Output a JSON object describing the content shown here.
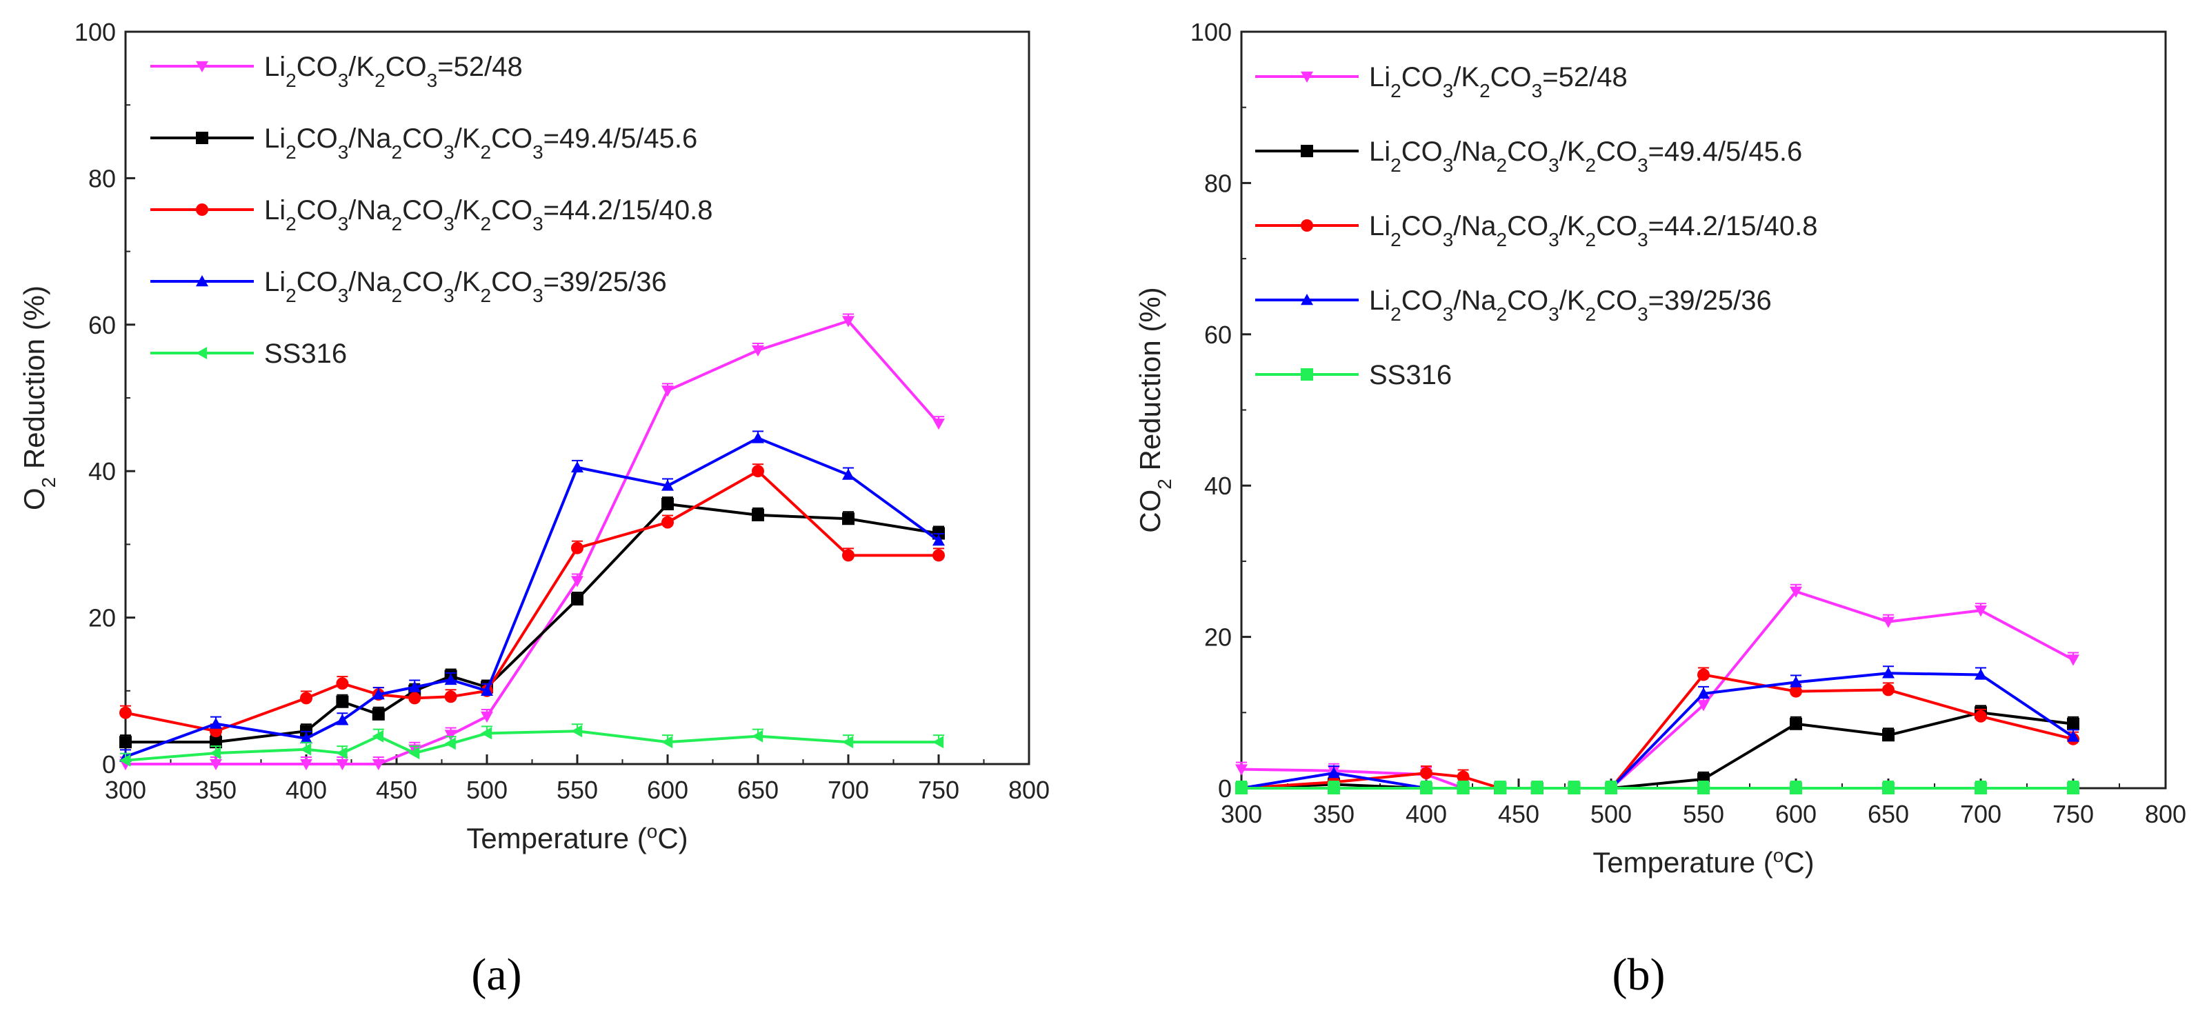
{
  "figure": {
    "panels": [
      "(a)",
      "(b)"
    ]
  },
  "chart_data": [
    {
      "type": "line",
      "panel_label": "(a)",
      "title": "",
      "xlabel": "Temperature (°C)",
      "xlabel_parts": [
        "Temperature (",
        "o",
        "C)"
      ],
      "ylabel": "O2 Reduction (%)",
      "ylabel_parts": [
        "O",
        "2",
        " Reduction (%)"
      ],
      "xlim": [
        300,
        800
      ],
      "ylim": [
        0,
        100
      ],
      "xticks": [
        300,
        350,
        400,
        450,
        500,
        550,
        600,
        650,
        700,
        750,
        800
      ],
      "yticks": [
        0,
        20,
        40,
        60,
        80,
        100
      ],
      "grid": false,
      "legend_position": "top-left",
      "series": [
        {
          "name": "Li2CO3/K2CO3=52/48",
          "label_runs": [
            [
              "Li",
              false
            ],
            [
              "2",
              true
            ],
            [
              "CO",
              false
            ],
            [
              "3",
              true
            ],
            [
              "/K",
              false
            ],
            [
              "2",
              true
            ],
            [
              "CO",
              false
            ],
            [
              "3",
              true
            ],
            [
              "=52/48",
              false
            ]
          ],
          "color": "#ff33ff",
          "marker": "triangle-down",
          "x": [
            300,
            350,
            400,
            420,
            440,
            460,
            480,
            500,
            550,
            600,
            650,
            700,
            750
          ],
          "y": [
            0,
            0,
            0,
            0,
            0,
            2,
            4,
            6.5,
            25,
            51,
            56.5,
            60.5,
            46.5
          ]
        },
        {
          "name": "Li2CO3/Na2CO3/K2CO3=49.4/5/45.6",
          "label_runs": [
            [
              "Li",
              false
            ],
            [
              "2",
              true
            ],
            [
              "CO",
              false
            ],
            [
              "3",
              true
            ],
            [
              "/Na",
              false
            ],
            [
              "2",
              true
            ],
            [
              "CO",
              false
            ],
            [
              "3",
              true
            ],
            [
              "/K",
              false
            ],
            [
              "2",
              true
            ],
            [
              "CO",
              false
            ],
            [
              "3",
              true
            ],
            [
              "=49.4/5/45.6",
              false
            ]
          ],
          "color": "#000000",
          "marker": "square",
          "x": [
            300,
            350,
            400,
            420,
            440,
            460,
            480,
            500,
            550,
            600,
            650,
            700,
            750
          ],
          "y": [
            3,
            3,
            4.5,
            8.5,
            6.8,
            10,
            12,
            10.5,
            22.5,
            35.5,
            34,
            33.5,
            31.5
          ]
        },
        {
          "name": "Li2CO3/Na2CO3/K2CO3=44.2/15/40.8",
          "label_runs": [
            [
              "Li",
              false
            ],
            [
              "2",
              true
            ],
            [
              "CO",
              false
            ],
            [
              "3",
              true
            ],
            [
              "/Na",
              false
            ],
            [
              "2",
              true
            ],
            [
              "CO",
              false
            ],
            [
              "3",
              true
            ],
            [
              "/K",
              false
            ],
            [
              "2",
              true
            ],
            [
              "CO",
              false
            ],
            [
              "3",
              true
            ],
            [
              "=44.2/15/40.8",
              false
            ]
          ],
          "color": "#ff0000",
          "marker": "circle",
          "x": [
            300,
            350,
            400,
            420,
            440,
            460,
            480,
            500,
            550,
            600,
            650,
            700,
            750
          ],
          "y": [
            7,
            4.5,
            9,
            11,
            9.5,
            9,
            9.2,
            10,
            29.5,
            33,
            40,
            28.5,
            28.5
          ]
        },
        {
          "name": "Li2CO3/Na2CO3/K2CO3=39/25/36",
          "label_runs": [
            [
              "Li",
              false
            ],
            [
              "2",
              true
            ],
            [
              "CO",
              false
            ],
            [
              "3",
              true
            ],
            [
              "/Na",
              false
            ],
            [
              "2",
              true
            ],
            [
              "CO",
              false
            ],
            [
              "3",
              true
            ],
            [
              "/K",
              false
            ],
            [
              "2",
              true
            ],
            [
              "CO",
              false
            ],
            [
              "3",
              true
            ],
            [
              "=39/25/36",
              false
            ]
          ],
          "color": "#0000ff",
          "marker": "triangle-up",
          "x": [
            300,
            350,
            400,
            420,
            440,
            460,
            480,
            500,
            550,
            600,
            650,
            700,
            750
          ],
          "y": [
            1,
            5.5,
            3.5,
            6,
            9.5,
            10.5,
            11.5,
            10,
            40.5,
            38,
            44.5,
            39.5,
            30.5
          ]
        },
        {
          "name": "SS316",
          "label_runs": [
            [
              "SS316",
              false
            ]
          ],
          "color": "#22ee55",
          "marker": "triangle-left",
          "x": [
            300,
            350,
            400,
            420,
            440,
            460,
            480,
            500,
            550,
            600,
            650,
            700,
            750
          ],
          "y": [
            0.5,
            1.5,
            2,
            1.5,
            3.8,
            1.5,
            2.8,
            4.2,
            4.5,
            3,
            3.8,
            3,
            3
          ]
        }
      ]
    },
    {
      "type": "line",
      "panel_label": "(b)",
      "title": "",
      "xlabel": "Temperature (°C)",
      "xlabel_parts": [
        "Temperature (",
        "o",
        "C)"
      ],
      "ylabel": "CO2 Reduction (%)",
      "ylabel_parts": [
        "CO",
        "2",
        " Reduction (%)"
      ],
      "xlim": [
        300,
        800
      ],
      "ylim": [
        0,
        100
      ],
      "xticks": [
        300,
        350,
        400,
        450,
        500,
        550,
        600,
        650,
        700,
        750,
        800
      ],
      "yticks": [
        0,
        20,
        40,
        60,
        80,
        100
      ],
      "grid": false,
      "legend_position": "top-left",
      "series": [
        {
          "name": "Li2CO3/K2CO3=52/48",
          "label_runs": [
            [
              "Li",
              false
            ],
            [
              "2",
              true
            ],
            [
              "CO",
              false
            ],
            [
              "3",
              true
            ],
            [
              "/K",
              false
            ],
            [
              "2",
              true
            ],
            [
              "CO",
              false
            ],
            [
              "3",
              true
            ],
            [
              "=52/48",
              false
            ]
          ],
          "color": "#ff33ff",
          "marker": "triangle-down",
          "x": [
            300,
            350,
            400,
            420,
            440,
            460,
            480,
            500,
            550,
            600,
            650,
            700,
            750
          ],
          "y": [
            2.5,
            2.3,
            1.8,
            0,
            0,
            0,
            0,
            0,
            11,
            26,
            22,
            23.5,
            17
          ]
        },
        {
          "name": "Li2CO3/Na2CO3/K2CO3=49.4/5/45.6",
          "label_runs": [
            [
              "Li",
              false
            ],
            [
              "2",
              true
            ],
            [
              "CO",
              false
            ],
            [
              "3",
              true
            ],
            [
              "/Na",
              false
            ],
            [
              "2",
              true
            ],
            [
              "CO",
              false
            ],
            [
              "3",
              true
            ],
            [
              "/K",
              false
            ],
            [
              "2",
              true
            ],
            [
              "CO",
              false
            ],
            [
              "3",
              true
            ],
            [
              "=49.4/5/45.6",
              false
            ]
          ],
          "color": "#000000",
          "marker": "square",
          "x": [
            300,
            350,
            400,
            420,
            440,
            460,
            480,
            500,
            550,
            600,
            650,
            700,
            750
          ],
          "y": [
            0,
            0.5,
            0,
            0,
            0,
            0,
            0,
            0,
            1.2,
            8.5,
            7,
            10,
            8.5
          ]
        },
        {
          "name": "Li2CO3/Na2CO3/K2CO3=44.2/15/40.8",
          "label_runs": [
            [
              "Li",
              false
            ],
            [
              "2",
              true
            ],
            [
              "CO",
              false
            ],
            [
              "3",
              true
            ],
            [
              "/Na",
              false
            ],
            [
              "2",
              true
            ],
            [
              "CO",
              false
            ],
            [
              "3",
              true
            ],
            [
              "/K",
              false
            ],
            [
              "2",
              true
            ],
            [
              "CO",
              false
            ],
            [
              "3",
              true
            ],
            [
              "=44.2/15/40.8",
              false
            ]
          ],
          "color": "#ff0000",
          "marker": "circle",
          "x": [
            300,
            350,
            400,
            420,
            440,
            460,
            480,
            500,
            550,
            600,
            650,
            700,
            750
          ],
          "y": [
            0,
            0.8,
            2,
            1.5,
            0,
            0,
            0,
            0,
            15,
            12.8,
            13,
            9.5,
            6.5
          ]
        },
        {
          "name": "Li2CO3/Na2CO3/K2CO3=39/25/36",
          "label_runs": [
            [
              "Li",
              false
            ],
            [
              "2",
              true
            ],
            [
              "CO",
              false
            ],
            [
              "3",
              true
            ],
            [
              "/Na",
              false
            ],
            [
              "2",
              true
            ],
            [
              "CO",
              false
            ],
            [
              "3",
              true
            ],
            [
              "/K",
              false
            ],
            [
              "2",
              true
            ],
            [
              "CO",
              false
            ],
            [
              "3",
              true
            ],
            [
              "=39/25/36",
              false
            ]
          ],
          "color": "#0000ff",
          "marker": "triangle-up",
          "x": [
            300,
            350,
            400,
            420,
            440,
            460,
            480,
            500,
            550,
            600,
            650,
            700,
            750
          ],
          "y": [
            0,
            2,
            0,
            0,
            0,
            0,
            0,
            0,
            12.5,
            14,
            15.2,
            15,
            6.8
          ]
        },
        {
          "name": "SS316",
          "label_runs": [
            [
              "SS316",
              false
            ]
          ],
          "color": "#22ee55",
          "marker": "square",
          "x": [
            300,
            350,
            400,
            420,
            440,
            460,
            480,
            500,
            550,
            600,
            650,
            700,
            750
          ],
          "y": [
            0,
            0,
            0,
            0,
            0,
            0,
            0,
            0,
            0,
            0,
            0,
            0,
            0
          ]
        }
      ]
    }
  ]
}
